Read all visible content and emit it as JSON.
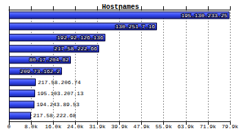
{
  "chart_data": {
    "type": "bar",
    "title": "Hostnames",
    "orientation": "horizontal",
    "categories": [
      "195.130.233.25",
      "130.251.7.16",
      "192.92.126.136",
      "217.58.222.66",
      "80.17.204.82",
      "209.73.162.2",
      "217.58.206.74",
      "195.103.207.13",
      "194.243.89.53",
      "217.58.222.68"
    ],
    "values": [
      79700,
      53480,
      34830,
      32590,
      22390,
      19150,
      9700,
      9450,
      9200,
      7960
    ],
    "color": "#3348f0",
    "xlim": [
      0,
      79850
    ],
    "xticks": [
      0,
      {
        "value": 7985,
        "label": "8.0k"
      },
      {
        "value": 15970,
        "label": "16.0k"
      },
      {
        "value": 23955,
        "label": "24.0k"
      },
      {
        "value": 31940,
        "label": "31.9k"
      },
      {
        "value": 39925,
        "label": "39.9k"
      },
      {
        "value": 47910,
        "label": "47.9k"
      },
      {
        "value": 55895,
        "label": "55.9k"
      },
      {
        "value": 63880,
        "label": "63.9k"
      },
      {
        "value": 71865,
        "label": "71.9k"
      },
      {
        "value": 79850,
        "label": "79.9k"
      }
    ],
    "grid": true,
    "tick_labels": "x"
  }
}
